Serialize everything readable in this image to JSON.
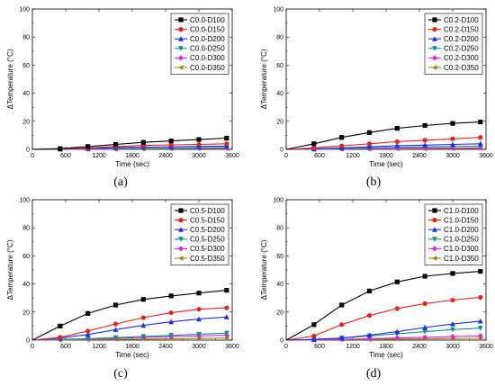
{
  "chart_data": [
    {
      "type": "line",
      "caption": "(a)",
      "xlabel": "Time (sec)",
      "ylabel": "ΔTemperature (°C)",
      "xlim": [
        0,
        3600
      ],
      "ylim": [
        0,
        100
      ],
      "xticks": [
        0,
        600,
        1200,
        1800,
        2400,
        3000,
        3600
      ],
      "yticks": [
        0,
        20,
        40,
        60,
        80,
        100
      ],
      "legend_position": "top-right",
      "x": [
        0,
        500,
        1000,
        1500,
        2000,
        2500,
        3000,
        3500
      ],
      "series": [
        {
          "name": "C0.0-D100",
          "color": "#000000",
          "marker": "square",
          "values": [
            0,
            0.5,
            2,
            3.5,
            5,
            6,
            7,
            8
          ]
        },
        {
          "name": "C0.0-D150",
          "color": "#e8211c",
          "marker": "circle",
          "values": [
            0,
            0.3,
            1,
            2,
            2.8,
            3.2,
            3.5,
            4
          ]
        },
        {
          "name": "C0.0-D200",
          "color": "#1c2ee8",
          "marker": "triangle",
          "values": [
            0,
            0.2,
            0.6,
            1.2,
            1.6,
            1.9,
            2.1,
            2.3
          ]
        },
        {
          "name": "C0.0-D250",
          "color": "#12918e",
          "marker": "tri-down",
          "values": [
            0,
            0.1,
            0.3,
            0.6,
            0.8,
            1,
            1.1,
            1.2
          ]
        },
        {
          "name": "C0.0-D300",
          "color": "#e81ce0",
          "marker": "diamond",
          "values": [
            0,
            0.05,
            0.2,
            0.4,
            0.6,
            0.7,
            0.8,
            0.9
          ]
        },
        {
          "name": "C0.0-D350",
          "color": "#9a8a14",
          "marker": "tri-left",
          "values": [
            0,
            0,
            0.1,
            0.2,
            0.3,
            0.4,
            0.5,
            0.5
          ]
        }
      ]
    },
    {
      "type": "line",
      "caption": "(b)",
      "xlabel": "Time (sec)",
      "ylabel": "ΔTemperature (°C)",
      "xlim": [
        0,
        3600
      ],
      "ylim": [
        0,
        100
      ],
      "xticks": [
        0,
        600,
        1200,
        1800,
        2400,
        3000,
        3600
      ],
      "yticks": [
        0,
        20,
        40,
        60,
        80,
        100
      ],
      "legend_position": "top-right",
      "x": [
        0,
        500,
        1000,
        1500,
        2000,
        2500,
        3000,
        3500
      ],
      "series": [
        {
          "name": "C0.2-D100",
          "color": "#000000",
          "marker": "square",
          "values": [
            0,
            4,
            8.5,
            12,
            15,
            17,
            18.5,
            19.5
          ]
        },
        {
          "name": "C0.2-D150",
          "color": "#e8211c",
          "marker": "circle",
          "values": [
            0,
            1,
            2.5,
            4,
            5.5,
            6.5,
            7.5,
            8.5
          ]
        },
        {
          "name": "C0.2-D200",
          "color": "#1c2ee8",
          "marker": "triangle",
          "values": [
            0,
            0.3,
            1,
            1.8,
            2.6,
            3,
            3.5,
            4
          ]
        },
        {
          "name": "C0.2-D250",
          "color": "#12918e",
          "marker": "tri-down",
          "values": [
            0,
            0.2,
            0.6,
            1,
            1.4,
            1.8,
            2.1,
            2.4
          ]
        },
        {
          "name": "C0.2-D300",
          "color": "#e81ce0",
          "marker": "diamond",
          "values": [
            0,
            0.1,
            0.3,
            0.5,
            0.7,
            0.9,
            1,
            1.1
          ]
        },
        {
          "name": "C0.2-D350",
          "color": "#9a8a14",
          "marker": "tri-left",
          "values": [
            0,
            0.05,
            0.2,
            0.3,
            0.4,
            0.5,
            0.6,
            0.7
          ]
        }
      ]
    },
    {
      "type": "line",
      "caption": "(c)",
      "xlabel": "Time (sec)",
      "ylabel": "ΔTemperature (°C)",
      "xlim": [
        0,
        3600
      ],
      "ylim": [
        0,
        100
      ],
      "xticks": [
        0,
        600,
        1200,
        1800,
        2400,
        3000,
        3600
      ],
      "yticks": [
        0,
        20,
        40,
        60,
        80,
        100
      ],
      "legend_position": "top-right",
      "x": [
        0,
        500,
        1000,
        1500,
        2000,
        2500,
        3000,
        3500
      ],
      "series": [
        {
          "name": "C0.5-D100",
          "color": "#000000",
          "marker": "square",
          "values": [
            0,
            10,
            19,
            25,
            29,
            31.5,
            33.5,
            35.5
          ]
        },
        {
          "name": "C0.5-D150",
          "color": "#e8211c",
          "marker": "circle",
          "values": [
            0,
            2,
            6.5,
            11.5,
            16,
            19.5,
            22,
            23
          ]
        },
        {
          "name": "C0.5-D200",
          "color": "#1c2ee8",
          "marker": "triangle",
          "values": [
            0,
            1.5,
            4,
            7.5,
            10.5,
            13,
            15,
            16.5
          ]
        },
        {
          "name": "C0.5-D250",
          "color": "#12918e",
          "marker": "tri-down",
          "values": [
            0,
            0.5,
            1,
            1.8,
            2.6,
            3.4,
            4.2,
            5
          ]
        },
        {
          "name": "C0.5-D300",
          "color": "#e81ce0",
          "marker": "diamond",
          "values": [
            0,
            0.3,
            0.7,
            1.3,
            1.9,
            2.5,
            3,
            3.5
          ]
        },
        {
          "name": "C0.5-D350",
          "color": "#9a8a14",
          "marker": "tri-left",
          "values": [
            0,
            0.1,
            0.3,
            0.6,
            0.8,
            1,
            1.2,
            1.4
          ]
        }
      ]
    },
    {
      "type": "line",
      "caption": "(d)",
      "xlabel": "Time (sec)",
      "ylabel": "ΔTemperature (°C)",
      "xlim": [
        0,
        3600
      ],
      "ylim": [
        0,
        100
      ],
      "xticks": [
        0,
        600,
        1200,
        1800,
        2400,
        3000,
        3600
      ],
      "yticks": [
        0,
        20,
        40,
        60,
        80,
        100
      ],
      "legend_position": "top-right",
      "x": [
        0,
        500,
        1000,
        1500,
        2000,
        2500,
        3000,
        3500
      ],
      "series": [
        {
          "name": "C1.0-D100",
          "color": "#000000",
          "marker": "square",
          "values": [
            0,
            11,
            25,
            35,
            41.5,
            45.5,
            47.5,
            49
          ]
        },
        {
          "name": "C1.0-D150",
          "color": "#e8211c",
          "marker": "circle",
          "values": [
            0,
            3,
            11,
            17.5,
            22.5,
            26,
            28.5,
            30.5
          ]
        },
        {
          "name": "C1.0-D200",
          "color": "#1c2ee8",
          "marker": "triangle",
          "values": [
            0,
            0.5,
            1.5,
            3.5,
            6,
            9,
            11.5,
            13.5
          ]
        },
        {
          "name": "C1.0-D250",
          "color": "#12918e",
          "marker": "tri-down",
          "values": [
            0,
            0.4,
            1.5,
            3,
            4.5,
            6,
            7.5,
            8.5
          ]
        },
        {
          "name": "C1.0-D300",
          "color": "#e81ce0",
          "marker": "diamond",
          "values": [
            0,
            0.2,
            0.6,
            1,
            1.5,
            2,
            2.5,
            3
          ]
        },
        {
          "name": "C1.0-D350",
          "color": "#9a8a14",
          "marker": "tri-left",
          "values": [
            0,
            0.1,
            0.3,
            0.5,
            0.7,
            0.9,
            1.1,
            1.3
          ]
        }
      ]
    }
  ]
}
